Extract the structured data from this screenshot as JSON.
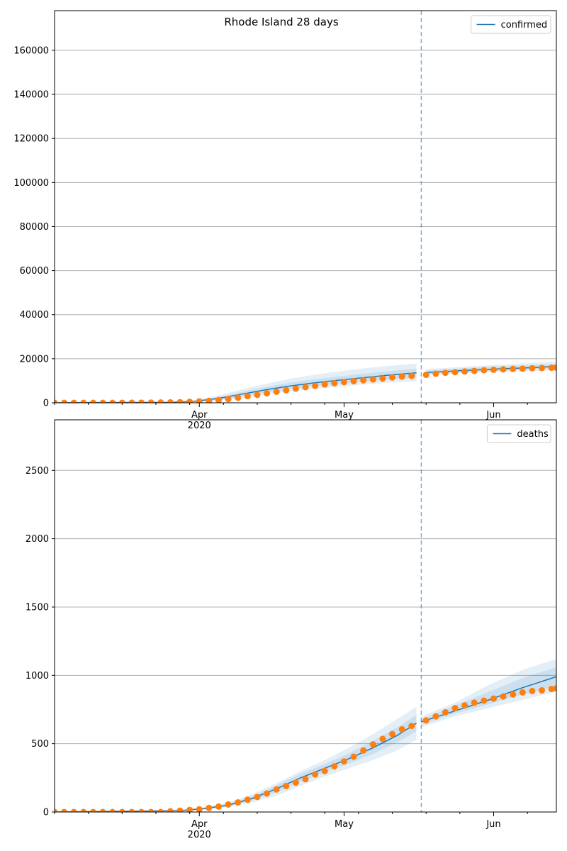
{
  "figure_title": "Rhode Island 28 days",
  "colors": {
    "model": "#1f77b4",
    "observed": "#ff7f0e",
    "band": "#1f77b4",
    "grid": "#b0b0b0",
    "split_line": "#1f77b4"
  },
  "chart_data": [
    {
      "type": "line",
      "title": "Rhode Island 28 days",
      "xlabel": "",
      "ylabel": "",
      "xlim": [
        "2020-03-02",
        "2020-06-14"
      ],
      "ylim": [
        0,
        178000
      ],
      "yticks": [
        0,
        20000,
        40000,
        60000,
        80000,
        100000,
        120000,
        140000,
        160000
      ],
      "xtick_labels": [
        {
          "date": "2020-04-01",
          "label": "Apr",
          "sublabel": "2020"
        },
        {
          "date": "2020-05-01",
          "label": "May",
          "sublabel": ""
        },
        {
          "date": "2020-06-01",
          "label": "Jun",
          "sublabel": ""
        }
      ],
      "grid": "horizontal",
      "legend": {
        "position": "top-right",
        "entries": [
          "confirmed"
        ]
      },
      "forecast_start": "2020-05-17",
      "series": [
        {
          "name": "confirmed",
          "kind": "model",
          "x": [
            "2020-03-02",
            "2020-03-26",
            "2020-03-31",
            "2020-04-05",
            "2020-04-10",
            "2020-04-15",
            "2020-04-20",
            "2020-04-25",
            "2020-04-30",
            "2020-05-05",
            "2020-05-10",
            "2020-05-16"
          ],
          "values": [
            0,
            200,
            700,
            2000,
            4000,
            6000,
            7700,
            9100,
            10300,
            11400,
            12500,
            13600
          ],
          "bands": [
            {
              "lower": [
                0,
                120,
                400,
                1000,
                2200,
                3800,
                5200,
                6400,
                7400,
                8300,
                9100,
                9800
              ],
              "upper": [
                0,
                300,
                1100,
                3300,
                6200,
                8700,
                11000,
                12800,
                14300,
                15600,
                16700,
                17800
              ]
            },
            {
              "lower": [
                0,
                150,
                520,
                1400,
                2900,
                4600,
                6200,
                7500,
                8600,
                9600,
                10600,
                11400
              ],
              "upper": [
                0,
                250,
                900,
                2600,
                5000,
                7300,
                9200,
                10700,
                12000,
                13200,
                14300,
                15400
              ]
            }
          ]
        },
        {
          "name": "confirmed-forecast",
          "kind": "model",
          "x": [
            "2020-05-18",
            "2020-05-25",
            "2020-06-01",
            "2020-06-08",
            "2020-06-14"
          ],
          "values": [
            13700,
            14600,
            15300,
            15900,
            16500
          ],
          "bands": [
            {
              "lower": [
                12500,
                13300,
                13900,
                14300,
                14700
              ],
              "upper": [
                15200,
                16300,
                17200,
                18000,
                18600
              ]
            },
            {
              "lower": [
                13000,
                13800,
                14500,
                15000,
                15400
              ],
              "upper": [
                14600,
                15600,
                16400,
                17000,
                17600
              ]
            }
          ]
        },
        {
          "name": "confirmed-observed",
          "kind": "observed",
          "x": [
            "2020-03-02",
            "2020-03-04",
            "2020-03-06",
            "2020-03-08",
            "2020-03-10",
            "2020-03-12",
            "2020-03-14",
            "2020-03-16",
            "2020-03-18",
            "2020-03-20",
            "2020-03-22",
            "2020-03-24",
            "2020-03-26",
            "2020-03-28",
            "2020-03-30",
            "2020-04-01",
            "2020-04-03",
            "2020-04-05",
            "2020-04-07",
            "2020-04-09",
            "2020-04-11",
            "2020-04-13",
            "2020-04-15",
            "2020-04-17",
            "2020-04-19",
            "2020-04-21",
            "2020-04-23",
            "2020-04-25",
            "2020-04-27",
            "2020-04-29",
            "2020-05-01",
            "2020-05-03",
            "2020-05-05",
            "2020-05-07",
            "2020-05-09",
            "2020-05-11",
            "2020-05-13",
            "2020-05-15",
            "2020-05-18",
            "2020-05-20",
            "2020-05-22",
            "2020-05-24",
            "2020-05-26",
            "2020-05-28",
            "2020-05-30",
            "2020-06-01",
            "2020-06-03",
            "2020-06-05",
            "2020-06-07",
            "2020-06-09",
            "2020-06-11",
            "2020-06-13",
            "2020-06-14"
          ],
          "values": [
            0,
            0,
            0,
            0,
            0,
            0,
            0,
            20,
            40,
            60,
            100,
            150,
            200,
            300,
            450,
            650,
            900,
            1250,
            1700,
            2300,
            3000,
            3600,
            4300,
            5000,
            5700,
            6400,
            7100,
            7700,
            8300,
            8900,
            9400,
            9800,
            10200,
            10600,
            11000,
            11500,
            11900,
            12200,
            12700,
            13200,
            13600,
            13900,
            14200,
            14500,
            14800,
            15000,
            15200,
            15400,
            15500,
            15700,
            15800,
            15900,
            16000
          ]
        }
      ]
    },
    {
      "type": "line",
      "title": "",
      "xlabel": "",
      "ylabel": "",
      "xlim": [
        "2020-03-02",
        "2020-06-14"
      ],
      "ylim": [
        0,
        2870
      ],
      "yticks": [
        0,
        500,
        1000,
        1500,
        2000,
        2500
      ],
      "xtick_labels": [
        {
          "date": "2020-04-01",
          "label": "Apr",
          "sublabel": "2020"
        },
        {
          "date": "2020-05-01",
          "label": "May",
          "sublabel": ""
        },
        {
          "date": "2020-06-01",
          "label": "Jun",
          "sublabel": ""
        }
      ],
      "grid": "horizontal",
      "legend": {
        "position": "top-right",
        "entries": [
          "deaths"
        ]
      },
      "forecast_start": "2020-05-17",
      "series": [
        {
          "name": "deaths",
          "kind": "model",
          "x": [
            "2020-03-02",
            "2020-03-28",
            "2020-04-02",
            "2020-04-07",
            "2020-04-12",
            "2020-04-17",
            "2020-04-22",
            "2020-04-27",
            "2020-05-02",
            "2020-05-07",
            "2020-05-12",
            "2020-05-16"
          ],
          "values": [
            0,
            10,
            25,
            50,
            100,
            170,
            250,
            320,
            390,
            470,
            560,
            650
          ],
          "bands": [
            {
              "lower": [
                0,
                5,
                15,
                35,
                70,
                120,
                190,
                260,
                320,
                380,
                450,
                530
              ],
              "upper": [
                0,
                15,
                35,
                70,
                130,
                210,
                300,
                380,
                470,
                570,
                680,
                770
              ]
            },
            {
              "lower": [
                0,
                8,
                20,
                42,
                85,
                145,
                220,
                290,
                355,
                425,
                510,
                590
              ],
              "upper": [
                0,
                12,
                30,
                60,
                115,
                195,
                280,
                350,
                430,
                520,
                620,
                710
              ]
            }
          ]
        },
        {
          "name": "deaths-forecast",
          "kind": "model",
          "x": [
            "2020-05-17",
            "2020-05-24",
            "2020-05-31",
            "2020-06-07",
            "2020-06-14"
          ],
          "values": [
            660,
            740,
            820,
            910,
            990
          ],
          "bands": [
            {
              "lower": [
                620,
                700,
                760,
                820,
                880
              ],
              "upper": [
                700,
                800,
                930,
                1040,
                1120
              ]
            },
            {
              "lower": [
                640,
                720,
                790,
                860,
                920
              ],
              "upper": [
                680,
                780,
                880,
                980,
                1060
              ]
            }
          ]
        },
        {
          "name": "deaths-observed",
          "kind": "observed",
          "x": [
            "2020-03-02",
            "2020-03-04",
            "2020-03-06",
            "2020-03-08",
            "2020-03-10",
            "2020-03-12",
            "2020-03-14",
            "2020-03-16",
            "2020-03-18",
            "2020-03-20",
            "2020-03-22",
            "2020-03-24",
            "2020-03-26",
            "2020-03-28",
            "2020-03-30",
            "2020-04-01",
            "2020-04-03",
            "2020-04-05",
            "2020-04-07",
            "2020-04-09",
            "2020-04-11",
            "2020-04-13",
            "2020-04-15",
            "2020-04-17",
            "2020-04-19",
            "2020-04-21",
            "2020-04-23",
            "2020-04-25",
            "2020-04-27",
            "2020-04-29",
            "2020-05-01",
            "2020-05-03",
            "2020-05-05",
            "2020-05-07",
            "2020-05-09",
            "2020-05-11",
            "2020-05-13",
            "2020-05-15",
            "2020-05-18",
            "2020-05-20",
            "2020-05-22",
            "2020-05-24",
            "2020-05-26",
            "2020-05-28",
            "2020-05-30",
            "2020-06-01",
            "2020-06-03",
            "2020-06-05",
            "2020-06-07",
            "2020-06-09",
            "2020-06-11",
            "2020-06-13",
            "2020-06-14"
          ],
          "values": [
            0,
            0,
            0,
            0,
            0,
            0,
            0,
            0,
            0,
            0,
            0,
            0,
            5,
            10,
            15,
            20,
            30,
            40,
            55,
            70,
            90,
            110,
            135,
            165,
            190,
            215,
            240,
            275,
            300,
            335,
            370,
            405,
            450,
            495,
            535,
            570,
            605,
            630,
            670,
            700,
            730,
            760,
            780,
            800,
            815,
            830,
            845,
            860,
            875,
            885,
            890,
            900,
            905
          ]
        }
      ]
    }
  ]
}
